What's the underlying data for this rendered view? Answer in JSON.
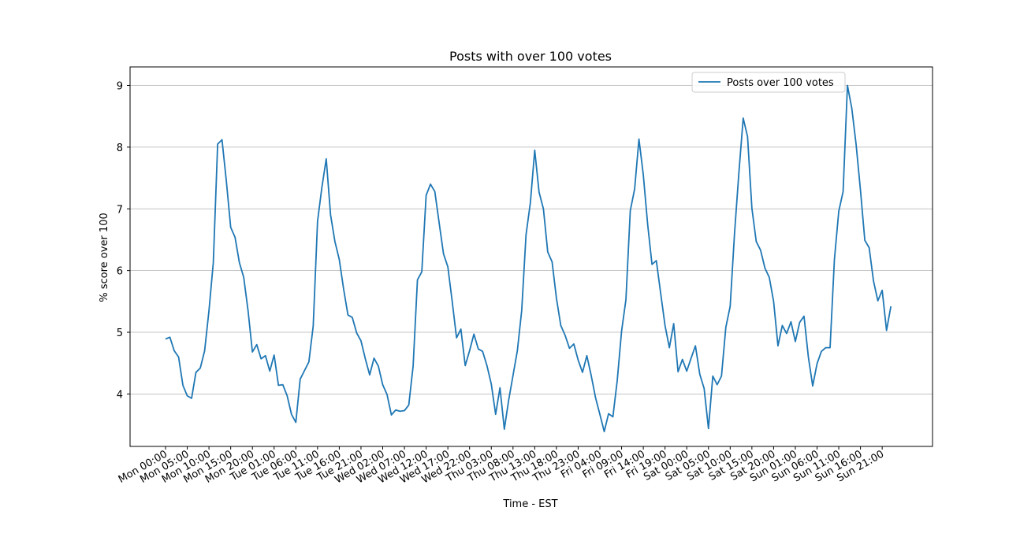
{
  "chart_data": {
    "type": "line",
    "title": "Posts with over 100 votes",
    "xlabel": "Time - EST",
    "ylabel": "% score over 100",
    "ylim": [
      3.15,
      9.3
    ],
    "yticks": [
      4,
      5,
      6,
      7,
      8,
      9
    ],
    "grid": "horizontal",
    "legend_position": "top-right",
    "line_color": "#1f77b4",
    "x_tick_labels": [
      "Mon 00:00",
      "Mon 05:00",
      "Mon 10:00",
      "Mon 15:00",
      "Mon 20:00",
      "Tue 01:00",
      "Tue 06:00",
      "Tue 11:00",
      "Tue 16:00",
      "Tue 21:00",
      "Wed 02:00",
      "Wed 07:00",
      "Wed 12:00",
      "Wed 17:00",
      "Wed 22:00",
      "Thu 03:00",
      "Thu 08:00",
      "Thu 13:00",
      "Thu 18:00",
      "Thu 23:00",
      "Fri 04:00",
      "Fri 09:00",
      "Fri 14:00",
      "Fri 19:00",
      "Sat 00:00",
      "Sat 05:00",
      "Sat 10:00",
      "Sat 15:00",
      "Sat 20:00",
      "Sun 01:00",
      "Sun 06:00",
      "Sun 11:00",
      "Sun 16:00",
      "Sun 21:00"
    ],
    "series": [
      {
        "name": "Posts over 100 votes",
        "values": [
          4.89,
          4.92,
          4.7,
          4.6,
          4.14,
          3.97,
          3.93,
          4.35,
          4.42,
          4.7,
          5.35,
          6.13,
          8.05,
          8.12,
          7.45,
          6.7,
          6.54,
          6.13,
          5.89,
          5.35,
          4.68,
          4.8,
          4.57,
          4.62,
          4.37,
          4.63,
          4.14,
          4.15,
          3.97,
          3.67,
          3.54,
          4.24,
          4.38,
          4.52,
          5.1,
          6.8,
          7.35,
          7.81,
          6.9,
          6.47,
          6.18,
          5.7,
          5.28,
          5.24,
          4.99,
          4.86,
          4.57,
          4.31,
          4.58,
          4.45,
          4.15,
          3.99,
          3.66,
          3.74,
          3.72,
          3.73,
          3.82,
          4.45,
          5.85,
          5.98,
          7.22,
          7.4,
          7.28,
          6.77,
          6.27,
          6.06,
          5.5,
          4.91,
          5.05,
          4.46,
          4.7,
          4.97,
          4.73,
          4.69,
          4.46,
          4.16,
          3.67,
          4.1,
          3.43,
          3.9,
          4.3,
          4.7,
          5.35,
          6.58,
          7.1,
          7.95,
          7.27,
          7.0,
          6.3,
          6.14,
          5.55,
          5.11,
          4.95,
          4.74,
          4.81,
          4.55,
          4.35,
          4.62,
          4.3,
          3.94,
          3.67,
          3.39,
          3.68,
          3.63,
          4.22,
          5.02,
          5.53,
          6.97,
          7.32,
          8.13,
          7.55,
          6.75,
          6.1,
          6.16,
          5.63,
          5.11,
          4.75,
          5.14,
          4.36,
          4.56,
          4.37,
          4.58,
          4.78,
          4.32,
          4.09,
          3.44,
          4.29,
          4.15,
          4.29,
          5.08,
          5.42,
          6.6,
          7.58,
          8.47,
          8.17,
          7.01,
          6.47,
          6.33,
          6.04,
          5.89,
          5.5,
          4.78,
          5.11,
          4.98,
          5.17,
          4.85,
          5.16,
          5.26,
          4.6,
          4.13,
          4.49,
          4.69,
          4.75,
          4.75,
          6.18,
          6.96,
          7.28,
          9.0,
          8.63,
          8.04,
          7.3,
          6.49,
          6.37,
          5.83,
          5.51,
          5.68,
          5.03,
          5.42
        ]
      }
    ]
  }
}
